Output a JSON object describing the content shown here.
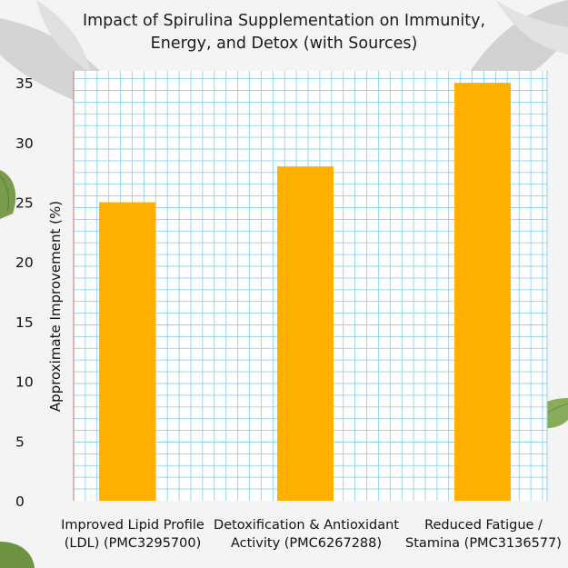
{
  "chart_data": {
    "type": "bar",
    "title_lines": [
      "Impact of Spirulina Supplementation on Immunity,",
      "Energy, and Detox (with Sources)"
    ],
    "ylabel": "Approximate Improvement (%)",
    "xlabel": "",
    "categories": [
      [
        "Improved Lipid Profile",
        "(LDL) (PMC3295700)"
      ],
      [
        "Detoxification & Antioxidant",
        "Activity (PMC6267288)"
      ],
      [
        "Reduced Fatigue /",
        "Stamina (PMC3136577)"
      ]
    ],
    "values": [
      25,
      28,
      35
    ],
    "ylim": [
      0,
      36
    ],
    "yticks": [
      0,
      5,
      10,
      15,
      20,
      25,
      30,
      35
    ],
    "grid": true,
    "bar_color": "#ffb000",
    "grid_color": "#8fd3e8",
    "plot_bg": "#ffffff"
  }
}
